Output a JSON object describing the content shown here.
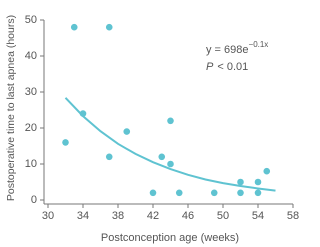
{
  "chart_data": {
    "type": "scatter",
    "x_label": "Postconception age (weeks)",
    "y_label": "Postoperative time to last apnea (hours)",
    "annotations": [
      "y = 698e",
      "−0.1x",
      "P",
      "< 0.01"
    ],
    "xlim": [
      30,
      58
    ],
    "xticks": [
      30,
      34,
      38,
      42,
      46,
      50,
      54,
      58
    ],
    "ylim": [
      0,
      50
    ],
    "yticks": [
      0,
      10,
      20,
      30,
      40,
      50
    ],
    "color": "#5fc3d1",
    "x": [
      32,
      33,
      34,
      37,
      37,
      39,
      42,
      43,
      44,
      44,
      45,
      49,
      52,
      52,
      54,
      54,
      55
    ],
    "values": [
      16,
      48,
      24,
      48,
      12,
      19,
      2,
      12,
      22,
      10,
      2,
      2,
      5,
      2,
      5,
      2,
      8
    ],
    "fit": {
      "x": [
        32,
        34,
        36,
        38,
        40,
        42,
        44,
        46,
        48,
        50,
        52,
        54,
        56
      ],
      "values": [
        28.4,
        23.3,
        19.1,
        15.6,
        12.8,
        10.5,
        8.6,
        7.0,
        5.7,
        4.7,
        3.9,
        3.2,
        2.6
      ]
    }
  }
}
